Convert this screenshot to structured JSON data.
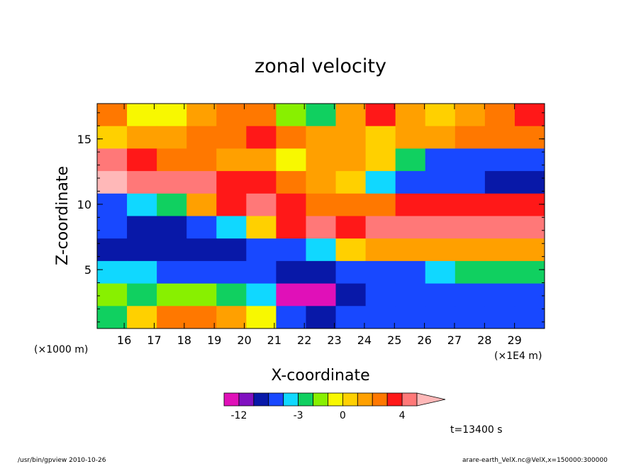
{
  "chart_data": {
    "type": "heatmap",
    "title": "zonal velocity",
    "xlabel": "X-coordinate",
    "ylabel": "Z-coordinate",
    "x_unit_left": "(×1000 m)",
    "x_unit_right": "(×1E4 m)",
    "x_ticks": [
      "16",
      "17",
      "18",
      "19",
      "20",
      "21",
      "22",
      "23",
      "24",
      "25",
      "26",
      "27",
      "28",
      "29"
    ],
    "y_ticks": [
      "5",
      "10",
      "15"
    ],
    "xlim": [
      15.1,
      30.0
    ],
    "ylim": [
      0.5,
      17.7
    ],
    "colorbar": {
      "levels": [
        -15,
        -12,
        -9,
        -6,
        -4,
        -3,
        -2,
        -1,
        0,
        1,
        2,
        3,
        4,
        6,
        8
      ],
      "tick_labels": [
        "-12",
        "-3",
        "0",
        "4"
      ],
      "colors": [
        "#e010b8",
        "#8010c0",
        "#0818a8",
        "#1848ff",
        "#10d8ff",
        "#10d060",
        "#88f000",
        "#f8f800",
        "#ffd000",
        "#ffa000",
        "#ff7800",
        "#ff1818",
        "#ff7878",
        "#ffb8b8"
      ]
    },
    "zonal_velocity_field": [
      [
        2,
        -1,
        -1,
        1,
        2,
        2,
        -2,
        -3,
        1,
        3,
        1,
        0,
        1,
        2,
        3
      ],
      [
        0,
        1,
        1,
        2,
        2,
        3,
        2,
        1,
        1,
        0,
        1,
        1,
        2,
        2,
        2
      ],
      [
        4,
        3,
        2,
        2,
        1,
        1,
        -1,
        1,
        1,
        0,
        -3,
        -5,
        -5,
        -5,
        -6
      ],
      [
        6,
        5,
        5,
        4,
        3,
        3,
        2,
        1,
        0,
        -4,
        -6,
        -6,
        -6,
        -7,
        -7
      ],
      [
        -6,
        -4,
        -3,
        1,
        3,
        4,
        3,
        2,
        2,
        2,
        3,
        3,
        3,
        3,
        3
      ],
      [
        -6,
        -8,
        -7,
        -6,
        -4,
        0,
        3,
        4,
        3,
        4,
        4,
        4,
        4,
        4,
        4
      ],
      [
        -7,
        -7,
        -8,
        -8,
        -7,
        -6,
        -5,
        -4,
        0,
        1,
        1,
        1,
        1,
        1,
        1
      ],
      [
        -4,
        -4,
        -5,
        -6,
        -6,
        -6,
        -7,
        -7,
        -6,
        -6,
        -5,
        -4,
        -3,
        -3,
        -3
      ],
      [
        -2,
        -3,
        -2,
        -2,
        -3,
        -4,
        -13,
        -13,
        -7,
        -6,
        -6,
        -5,
        -5,
        -6,
        -6
      ],
      [
        -3,
        0,
        2,
        2,
        1,
        -1,
        -6,
        -8,
        -6,
        -6,
        -6,
        -6,
        -6,
        -6,
        -6
      ]
    ],
    "time_label": "t=13400 s"
  },
  "footer": {
    "left": "/usr/bin/gpview   2010-10-26",
    "right": "arare-earth_VelX.nc@VelX,x=150000:300000"
  }
}
